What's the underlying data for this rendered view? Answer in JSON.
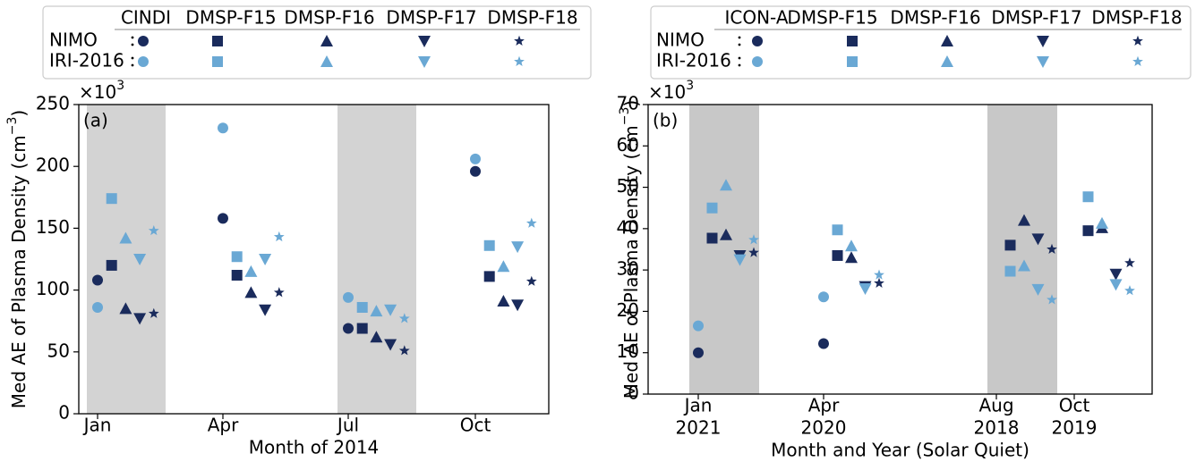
{
  "chart_data": [
    {
      "type": "scatter",
      "panel_label": "(a)",
      "xlabel": "Month of 2014",
      "ylabel": [
        "Med AE of Plasma Density (cm",
        "−3",
        ")"
      ],
      "y_multiplier": [
        "×10",
        "3"
      ],
      "categories": [
        [
          "Jan"
        ],
        [
          "Apr"
        ],
        [
          "Jul"
        ],
        [
          "Oct"
        ]
      ],
      "shaded": [
        true,
        false,
        true,
        false
      ],
      "shade_color": "#d3d3d3",
      "ylim": [
        0,
        250
      ],
      "yticks": [
        0,
        50,
        100,
        150,
        200,
        250
      ],
      "instruments": [
        {
          "name": "CINDI",
          "marker": "circle"
        },
        {
          "name": "DMSP-F15",
          "marker": "square"
        },
        {
          "name": "DMSP-F16",
          "marker": "triangle-up"
        },
        {
          "name": "DMSP-F17",
          "marker": "triangle-down"
        },
        {
          "name": "DMSP-F18",
          "marker": "star"
        }
      ],
      "models": [
        {
          "name": "NIMO",
          "color": "#1a2b5c",
          "values": [
            [
              108,
              120,
              85,
              77,
              81
            ],
            [
              158,
              112,
              98,
              84,
              98
            ],
            [
              69,
              69,
              62,
              56,
              51
            ],
            [
              196,
              111,
              91,
              88,
              107
            ]
          ]
        },
        {
          "name": "IRI-2016",
          "color": "#6aa8d4",
          "values": [
            [
              86,
              174,
              142,
              125,
              148
            ],
            [
              231,
              127,
              115,
              125,
              143
            ],
            [
              94,
              86,
              83,
              84,
              77
            ],
            [
              206,
              136,
              119,
              135,
              154
            ]
          ]
        }
      ]
    },
    {
      "type": "scatter",
      "panel_label": "(b)",
      "xlabel": "Month and Year (Solar Quiet)",
      "ylabel": [
        "Med AE of Plasma Density (cm",
        "−3",
        ")"
      ],
      "y_multiplier": [
        "×10",
        "3"
      ],
      "categories": [
        [
          "Jan",
          "2021"
        ],
        [
          "Apr",
          "2020"
        ],
        [
          "Aug",
          "2018"
        ],
        [
          "Oct",
          "2019"
        ]
      ],
      "shaded": [
        true,
        false,
        true,
        false
      ],
      "shade_color": "#c8c8c8",
      "ylim": [
        0,
        70
      ],
      "yticks": [
        0,
        10,
        20,
        30,
        40,
        50,
        60,
        70
      ],
      "instruments": [
        {
          "name": "ICON-A",
          "marker": "circle"
        },
        {
          "name": "DMSP-F15",
          "marker": "square"
        },
        {
          "name": "DMSP-F16",
          "marker": "triangle-up"
        },
        {
          "name": "DMSP-F17",
          "marker": "triangle-down"
        },
        {
          "name": "DMSP-F18",
          "marker": "star"
        }
      ],
      "models": [
        {
          "name": "NIMO",
          "color": "#1a2b5c",
          "values": [
            [
              10,
              37.7,
              38.5,
              33.5,
              34.2
            ],
            [
              12.2,
              33.5,
              33,
              26,
              26.8
            ],
            [
              null,
              36,
              42,
              37.5,
              35
            ],
            [
              null,
              39.5,
              40.2,
              29,
              31.7
            ]
          ]
        },
        {
          "name": "IRI-2016",
          "color": "#6aa8d4",
          "values": [
            [
              16.5,
              45,
              50.5,
              32.5,
              37.3
            ],
            [
              23.5,
              39.7,
              35.8,
              25.5,
              28.8
            ],
            [
              null,
              29.7,
              31,
              25.3,
              22.8
            ],
            [
              null,
              47.7,
              41.3,
              26.5,
              25
            ]
          ]
        }
      ]
    }
  ]
}
